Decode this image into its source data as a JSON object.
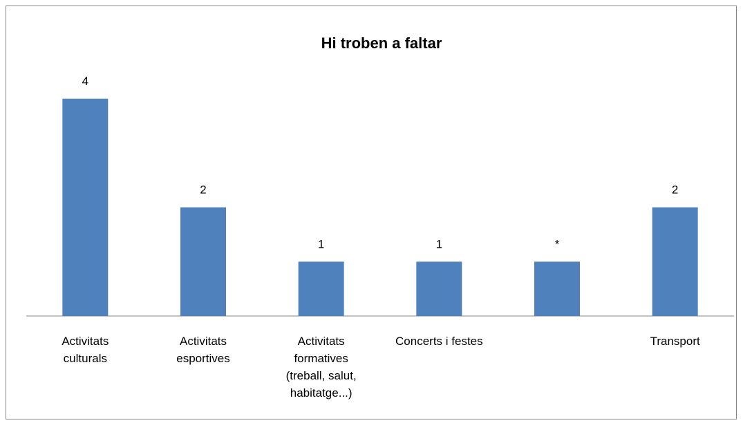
{
  "chart_data": {
    "type": "bar",
    "title": "Hi troben a faltar",
    "categories": [
      "Activitats culturals",
      "Activitats esportives",
      "Activitats formatives (treball, salut, habitatge...)",
      "Concerts i festes",
      null,
      "Transport"
    ],
    "values": [
      4,
      2,
      1,
      1,
      1,
      2
    ],
    "value_labels": [
      "4",
      "2",
      "1",
      "1",
      "*",
      "2"
    ],
    "color": "#4f81bd",
    "ylim": [
      0,
      4
    ]
  }
}
